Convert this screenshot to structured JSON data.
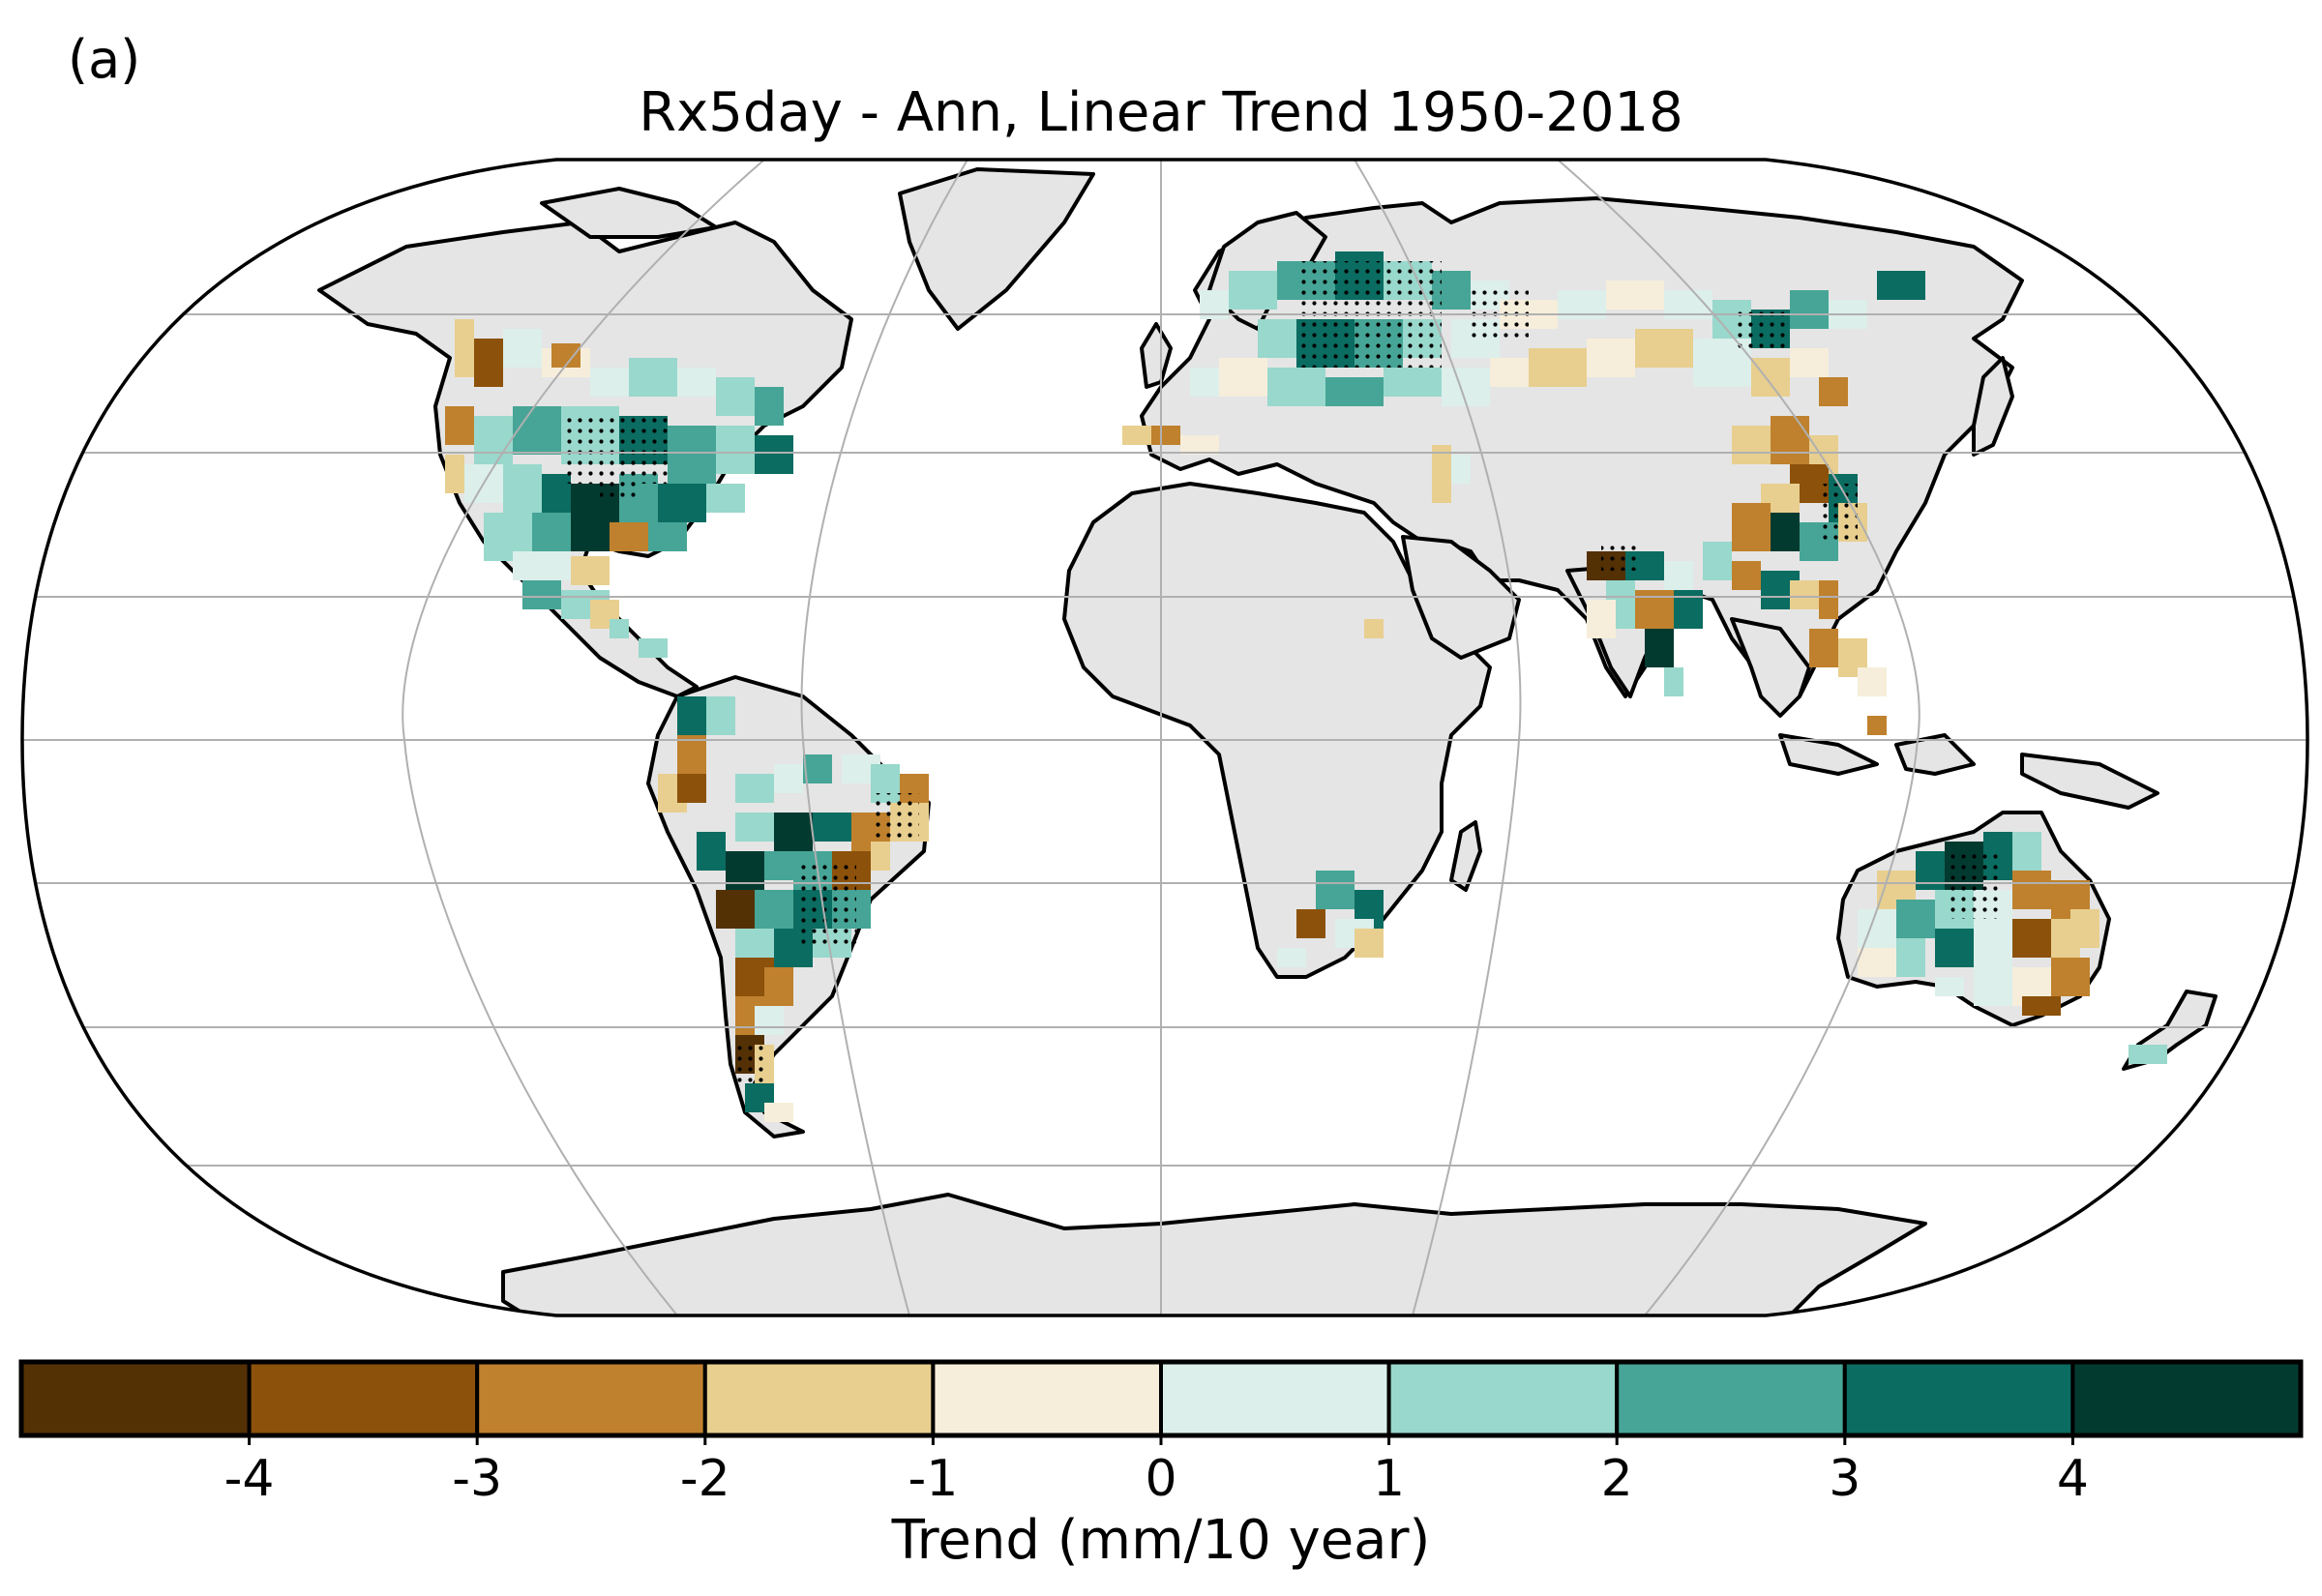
{
  "figure": {
    "panel_label": "(a)",
    "title": "Rx5day - Ann, Linear Trend 1950-2018"
  },
  "map": {
    "projection": "Robinson",
    "land_color": "#e5e5e5",
    "ocean_color": "#ffffff",
    "gridline_color": "#b0b0b0",
    "significance_marker": "black dots"
  },
  "colorbar": {
    "label": "Trend (mm/10 year)",
    "ticks": [
      "-4",
      "-3",
      "-2",
      "-1",
      "0",
      "1",
      "2",
      "3",
      "4"
    ],
    "bins": [
      {
        "range": "< -4",
        "color": "#543005"
      },
      {
        "range": "-4 to -3",
        "color": "#8c510a"
      },
      {
        "range": "-3 to -2",
        "color": "#bf812d"
      },
      {
        "range": "-2 to -1",
        "color": "#e8cf8f"
      },
      {
        "range": "-1 to 0",
        "color": "#f6eedb"
      },
      {
        "range": "0 to 1",
        "color": "#dcefeb"
      },
      {
        "range": "1 to 2",
        "color": "#99d8cc"
      },
      {
        "range": "2 to 3",
        "color": "#46a596"
      },
      {
        "range": "3 to 4",
        "color": "#0b6c61"
      },
      {
        "range": "> 4",
        "color": "#033a30"
      }
    ]
  },
  "regions": [
    {
      "name": "north-america",
      "dominant_trend": "positive",
      "note": "mostly 1 to 4, drying along west coast"
    },
    {
      "name": "europe-russia",
      "dominant_trend": "positive",
      "note": "widespread 0 to 3, many significant cells"
    },
    {
      "name": "east-asia",
      "dominant_trend": "mixed"
    },
    {
      "name": "south-asia",
      "dominant_trend": "mixed"
    },
    {
      "name": "south-america",
      "dominant_trend": "mixed",
      "note": "strong increases southeast, decreases northeast Brazil and Chile"
    },
    {
      "name": "southern-africa",
      "dominant_trend": "positive"
    },
    {
      "name": "australia",
      "dominant_trend": "mixed",
      "note": "increases north/west, decreases east"
    }
  ]
}
